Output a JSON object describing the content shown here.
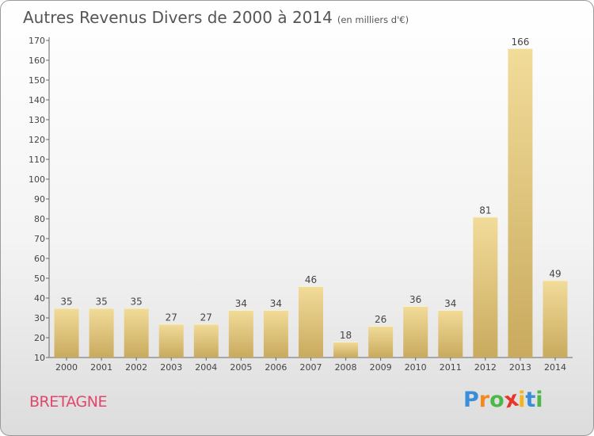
{
  "chart_data": {
    "type": "bar",
    "title": "Autres Revenus Divers de 2000 à 2014",
    "subtitle": "(en milliers d'€)",
    "categories": [
      "2000",
      "2001",
      "2002",
      "2003",
      "2004",
      "2005",
      "2006",
      "2007",
      "2008",
      "2009",
      "2010",
      "2011",
      "2012",
      "2013",
      "2014"
    ],
    "values": [
      35,
      35,
      35,
      27,
      27,
      34,
      34,
      46,
      18,
      26,
      36,
      34,
      81,
      166,
      49
    ],
    "ylim": [
      10,
      170
    ],
    "yticks": [
      10,
      20,
      30,
      40,
      50,
      60,
      70,
      80,
      90,
      100,
      110,
      120,
      130,
      140,
      150,
      160,
      170
    ],
    "grid": false,
    "bar_color": "#e8c97a"
  },
  "region_label": "BRETAGNE",
  "logo": {
    "letters": [
      "P",
      "r",
      "o",
      "x",
      "i",
      "t",
      "i"
    ],
    "colors": [
      "#3a8ed8",
      "#f28a1e",
      "#4db848",
      "#e8342c",
      "#f2b51e",
      "#3a8ed8",
      "#4db848"
    ]
  }
}
